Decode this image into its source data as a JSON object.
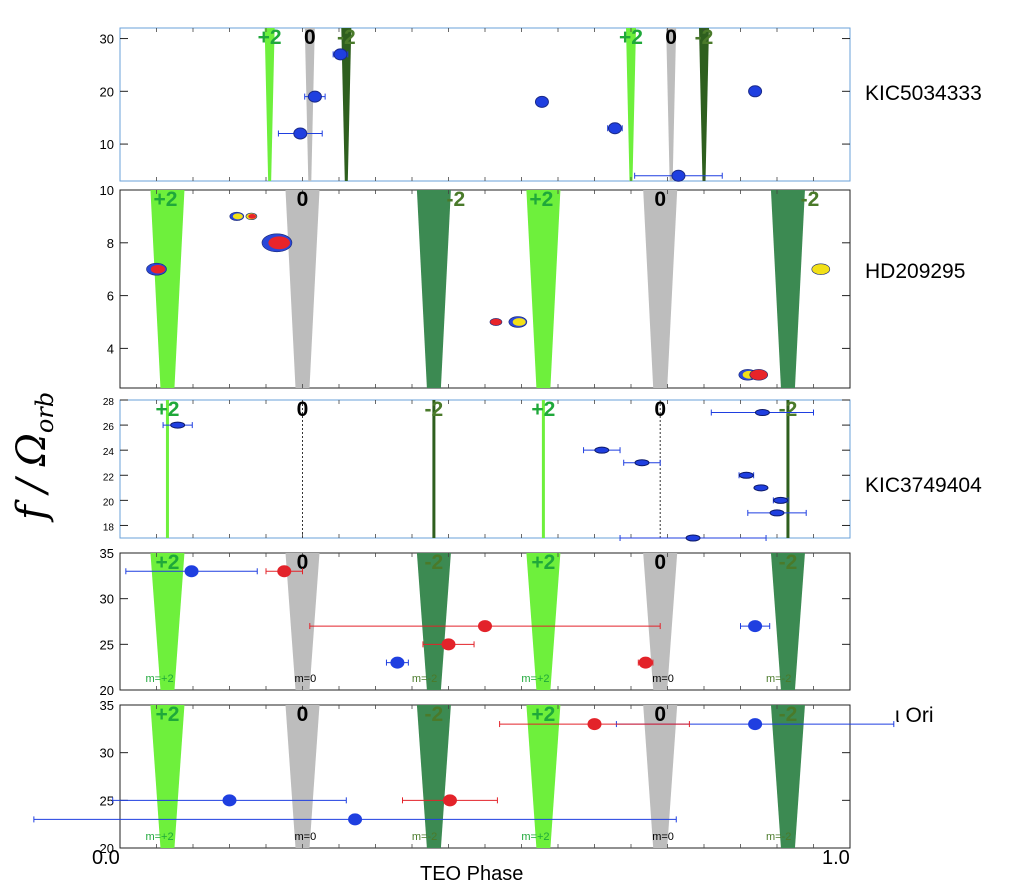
{
  "chart_data": [
    {
      "type": "scatter",
      "star": "KIC5034333",
      "ylim": [
        3,
        32
      ],
      "yticks": [
        "10",
        "20",
        "30"
      ],
      "mode_labels": [
        "+2",
        "0",
        "-2",
        "+2",
        "0",
        "-2"
      ],
      "m_labels": [],
      "series": [
        {
          "color": "#1f3fe0",
          "edge": "#1a2a8a",
          "values": [
            {
              "x": 0.247,
              "y": 12,
              "xerr": 0.03
            },
            {
              "x": 0.267,
              "y": 19,
              "xerr": 0.014
            },
            {
              "x": 0.302,
              "y": 27,
              "xerr": 0.01
            },
            {
              "x": 0.578,
              "y": 18,
              "xerr": 0
            },
            {
              "x": 0.678,
              "y": 13,
              "xerr": 0.01
            },
            {
              "x": 0.765,
              "y": 4,
              "xerr": 0.06
            },
            {
              "x": 0.87,
              "y": 20,
              "xerr": 0
            }
          ]
        }
      ]
    },
    {
      "type": "scatter",
      "star": "HD209295",
      "ylim": [
        2.5,
        10
      ],
      "yticks": [
        "4",
        "6",
        "8",
        "10"
      ],
      "mode_labels": [
        "+2",
        "0",
        "-2",
        "+2",
        "0",
        "-2"
      ],
      "m_labels": [],
      "points": [
        {
          "x": 0.05,
          "y": 7,
          "size": 1.0,
          "ring": "#2a47d8",
          "fill": "#e8242a"
        },
        {
          "x": 0.16,
          "y": 9,
          "size": 0.7,
          "ring": "#2a47d8",
          "fill": "#f2e018"
        },
        {
          "x": 0.18,
          "y": 9,
          "size": 0.55,
          "ring": "#f2e018",
          "fill": "#e8242a"
        },
        {
          "x": 0.215,
          "y": 8,
          "size": 1.5,
          "ring": "#2a47d8",
          "fill": "#e8242a"
        },
        {
          "x": 0.515,
          "y": 5,
          "size": 0.6,
          "ring": "#e8242a",
          "fill": "#e8242a"
        },
        {
          "x": 0.545,
          "y": 5,
          "size": 0.9,
          "ring": "#2a47d8",
          "fill": "#f2e018"
        },
        {
          "x": 0.86,
          "y": 3,
          "size": 0.9,
          "ring": "#2a47d8",
          "fill": "#f2e018"
        },
        {
          "x": 0.875,
          "y": 3,
          "size": 0.9,
          "ring": "#e8242a",
          "fill": "#e8242a"
        },
        {
          "x": 0.96,
          "y": 7,
          "size": 0.9,
          "ring": "#f2e018",
          "fill": "#f2e018"
        }
      ]
    },
    {
      "type": "scatter",
      "star": "KIC3749404",
      "ylim": [
        17,
        28
      ],
      "yticks": [
        "18",
        "20",
        "22",
        "24",
        "26",
        "28"
      ],
      "mode_labels": [
        "+2",
        "0",
        "-2",
        "+2",
        "0",
        "-2"
      ],
      "m_labels": [],
      "series": [
        {
          "color": "#1f3fe0",
          "edge": "#0d1a6a",
          "values": [
            {
              "x": 0.079,
              "y": 26,
              "xerr": 0.02
            },
            {
              "x": 0.66,
              "y": 24,
              "xerr": 0.025
            },
            {
              "x": 0.715,
              "y": 23,
              "xerr": 0.025
            },
            {
              "x": 0.858,
              "y": 22,
              "xerr": 0.01
            },
            {
              "x": 0.878,
              "y": 21,
              "xerr": 0
            },
            {
              "x": 0.905,
              "y": 20,
              "xerr": 0.01
            },
            {
              "x": 0.9,
              "y": 19,
              "xerr": 0.04
            },
            {
              "x": 0.88,
              "y": 27,
              "xerr": 0.07
            },
            {
              "x": 0.785,
              "y": 17,
              "xerr": 0.1
            }
          ]
        }
      ]
    },
    {
      "type": "scatter",
      "star": "",
      "ylim": [
        20,
        35
      ],
      "yticks": [
        "20",
        "25",
        "30",
        "35"
      ],
      "mode_labels": [
        "+2",
        "0",
        "-2",
        "+2",
        "0",
        "-2"
      ],
      "m_labels": [
        "m=+2",
        "m=0",
        "m=-2",
        "m=+2",
        "m=0",
        "m=-2"
      ],
      "series": [
        {
          "color": "#1f3fe0",
          "edge": "#1f3fe0",
          "values": [
            {
              "x": 0.098,
              "y": 33,
              "xerr": 0.09
            },
            {
              "x": 0.38,
              "y": 23,
              "xerr": 0.015
            },
            {
              "x": 0.87,
              "y": 27,
              "xerr": 0.02
            }
          ]
        },
        {
          "color": "#e3232a",
          "edge": "#e3232a",
          "values": [
            {
              "x": 0.225,
              "y": 33,
              "xerr": 0.025
            },
            {
              "x": 0.5,
              "y": 27,
              "xerr": 0.24
            },
            {
              "x": 0.45,
              "y": 25,
              "xerr": 0.035
            },
            {
              "x": 0.72,
              "y": 23,
              "xerr": 0.01
            }
          ]
        }
      ]
    },
    {
      "type": "scatter",
      "star": "ι Ori",
      "ylim": [
        20,
        35
      ],
      "yticks": [
        "20",
        "25",
        "30",
        "35"
      ],
      "mode_labels": [
        "+2",
        "0",
        "-2",
        "+2",
        "0",
        "-2"
      ],
      "m_labels": [
        "m=+2",
        "m=0",
        "m=-2",
        "m=+2",
        "m=0",
        "m=-2"
      ],
      "series": [
        {
          "color": "#1f3fe0",
          "edge": "#1f3fe0",
          "values": [
            {
              "x": 0.15,
              "y": 25,
              "xerr": 0.16
            },
            {
              "x": 0.322,
              "y": 23,
              "xerr": 0.44
            },
            {
              "x": 0.87,
              "y": 33,
              "xerr": 0.19
            }
          ]
        },
        {
          "color": "#e3232a",
          "edge": "#e3232a",
          "values": [
            {
              "x": 0.452,
              "y": 25,
              "xerr": 0.065
            },
            {
              "x": 0.65,
              "y": 33,
              "xerr": 0.13
            }
          ]
        }
      ]
    }
  ],
  "ylabel_main": "f / Ω",
  "ylabel_sub": "orb",
  "xlabel": "TEO Phase",
  "xtick_left": "0.0",
  "xtick_right": "1.0",
  "colors": {
    "plus2": "#6ef03c",
    "zero": "#bdbdbd",
    "minus2": "#3c8a52",
    "minus2_dark": "#2e5f1e",
    "plus2_text": "#1fa83a",
    "zero_text": "#000000",
    "minus2_text": "#4a7a2a"
  }
}
